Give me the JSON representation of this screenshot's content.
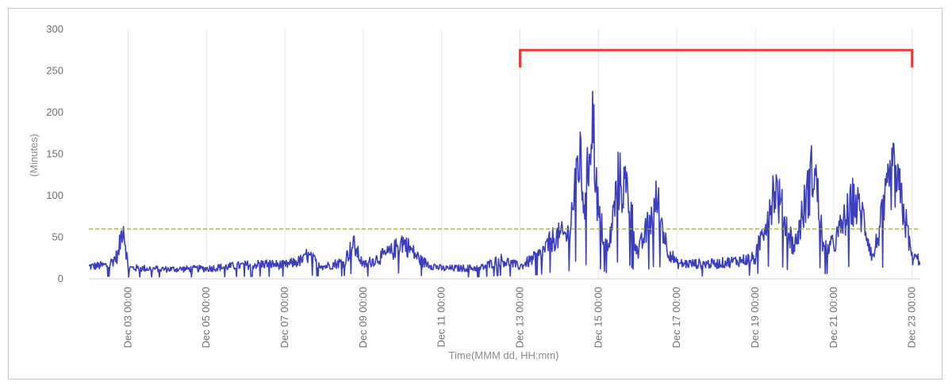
{
  "chart_data": {
    "type": "line",
    "xlabel": "Time(MMM dd, HH:mm)",
    "ylabel": "(Minutes)",
    "ylim": [
      0,
      300
    ],
    "yticks": [
      0,
      50,
      100,
      150,
      200,
      250,
      300
    ],
    "xlim": [
      "Dec 02 00:00",
      "Dec 23 05:00"
    ],
    "xticks": [
      "Dec 03 00:00",
      "Dec 05 00:00",
      "Dec 07 00:00",
      "Dec 09 00:00",
      "Dec 11 00:00",
      "Dec 13 00:00",
      "Dec 15 00:00",
      "Dec 17 00:00",
      "Dec 19 00:00",
      "Dec 21 00:00",
      "Dec 23 00:00"
    ],
    "grid": "vertical",
    "threshold": {
      "value": 60,
      "color": "#9aaa22",
      "style": "dashed"
    },
    "highlight": {
      "from": "Dec 13 00:00",
      "to": "Dec 23 00:00",
      "color": "#e83a3a",
      "level": 275
    },
    "series": [
      {
        "color": "#3b3fbd",
        "points": [
          [
            "Dec 02 00:00",
            18
          ],
          [
            "Dec 02 12:00",
            20
          ],
          [
            "Dec 02 18:00",
            35
          ],
          [
            "Dec 02 21:00",
            83
          ],
          [
            "Dec 03 00:00",
            16
          ],
          [
            "Dec 04 00:00",
            14
          ],
          [
            "Dec 05 00:00",
            15
          ],
          [
            "Dec 06 00:00",
            20
          ],
          [
            "Dec 06 12:00",
            22
          ],
          [
            "Dec 07 00:00",
            20
          ],
          [
            "Dec 07 12:00",
            28
          ],
          [
            "Dec 07 12:00",
            36
          ],
          [
            "Dec 08 00:00",
            18
          ],
          [
            "Dec 08 12:00",
            25
          ],
          [
            "Dec 08 18:00",
            50
          ],
          [
            "Dec 09 00:00",
            20
          ],
          [
            "Dec 09 18:00",
            40
          ],
          [
            "Dec 10 00:00",
            55
          ],
          [
            "Dec 10 12:00",
            25
          ],
          [
            "Dec 11 00:00",
            15
          ],
          [
            "Dec 12 00:00",
            16
          ],
          [
            "Dec 12 12:00",
            28
          ],
          [
            "Dec 13 00:00",
            18
          ],
          [
            "Dec 13 12:00",
            35
          ],
          [
            "Dec 13 21:00",
            60
          ],
          [
            "Dec 14 06:00",
            65
          ],
          [
            "Dec 14 12:00",
            180
          ],
          [
            "Dec 14 16:00",
            100
          ],
          [
            "Dec 14 20:00",
            250
          ],
          [
            "Dec 15 00:00",
            90
          ],
          [
            "Dec 15 06:00",
            40
          ],
          [
            "Dec 15 12:00",
            143
          ],
          [
            "Dec 15 18:00",
            128
          ],
          [
            "Dec 16 00:00",
            35
          ],
          [
            "Dec 16 12:00",
            115
          ],
          [
            "Dec 16 18:00",
            45
          ],
          [
            "Dec 17 00:00",
            22
          ],
          [
            "Dec 18 00:00",
            22
          ],
          [
            "Dec 19 00:00",
            30
          ],
          [
            "Dec 19 12:00",
            136
          ],
          [
            "Dec 19 18:00",
            85
          ],
          [
            "Dec 20 00:00",
            45
          ],
          [
            "Dec 20 12:00",
            165
          ],
          [
            "Dec 20 18:00",
            40
          ],
          [
            "Dec 21 00:00",
            50
          ],
          [
            "Dec 21 12:00",
            114
          ],
          [
            "Dec 21 18:00",
            90
          ],
          [
            "Dec 22 00:00",
            30
          ],
          [
            "Dec 22 12:00",
            156
          ],
          [
            "Dec 22 18:00",
            110
          ],
          [
            "Dec 23 00:00",
            30
          ],
          [
            "Dec 23 05:00",
            28
          ]
        ]
      }
    ]
  }
}
